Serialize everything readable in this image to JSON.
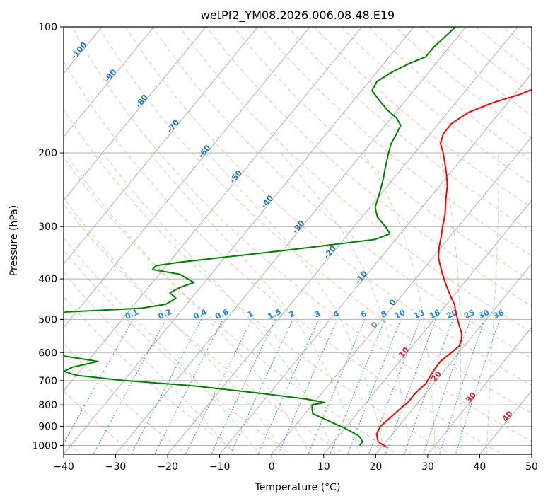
{
  "chart_data": {
    "type": "skew-t log-p",
    "title": "wetPf2_YM08.2026.006.08.48.E19",
    "xlabel": "Temperature (°C)",
    "ylabel": "Pressure (hPa)",
    "xlim": [
      -40,
      50
    ],
    "ylim": [
      1050,
      100
    ],
    "x_ticks": [
      -40,
      -30,
      -20,
      -10,
      0,
      10,
      20,
      30,
      40,
      50
    ],
    "y_ticks": [
      100,
      200,
      300,
      400,
      500,
      600,
      700,
      800,
      900,
      1000
    ],
    "log_scale_pressure": true,
    "grid": true,
    "colors": {
      "temperature": "#ff0000",
      "dewpoint": "#008000",
      "isotherm_grid": "#b0b0b0",
      "dry_adiabat": "#f4a582",
      "moist_adiabat": "#a6dba0",
      "mixing_ratio": "#1e88e5",
      "isotherm_label": "#1f78b4",
      "moist_label": "#d62728",
      "zero_label": "#888888"
    },
    "series": [
      {
        "name": "",
        "kind": "temperature",
        "points": [
          [
            21.0,
            1010
          ],
          [
            18.5,
            980
          ],
          [
            17.0,
            940
          ],
          [
            16.5,
            900
          ],
          [
            17.0,
            860
          ],
          [
            17.5,
            820
          ],
          [
            18.0,
            790
          ],
          [
            18.0,
            750
          ],
          [
            18.5,
            710
          ],
          [
            18.0,
            670
          ],
          [
            17.8,
            630
          ],
          [
            18.5,
            600
          ],
          [
            19.0,
            580
          ],
          [
            18.5,
            560
          ],
          [
            17.5,
            540
          ],
          [
            16.0,
            520
          ],
          [
            14.5,
            500
          ],
          [
            13.0,
            480
          ],
          [
            11.5,
            460
          ],
          [
            10.0,
            445
          ],
          [
            8.0,
            425
          ],
          [
            6.5,
            410
          ],
          [
            4.5,
            390
          ],
          [
            2.5,
            370
          ],
          [
            1.0,
            355
          ],
          [
            -0.5,
            335
          ],
          [
            -1.5,
            320
          ],
          [
            -3.0,
            300
          ],
          [
            -4.5,
            280
          ],
          [
            -6.5,
            260
          ],
          [
            -8.5,
            240
          ],
          [
            -10.5,
            225
          ],
          [
            -12.5,
            212
          ],
          [
            -14.5,
            200
          ],
          [
            -16.5,
            190
          ],
          [
            -17.5,
            180
          ],
          [
            -17.5,
            170
          ],
          [
            -16.0,
            160
          ],
          [
            -13.0,
            152
          ],
          [
            -9.0,
            145
          ],
          [
            -6.0,
            138
          ],
          [
            -3.5,
            130
          ],
          [
            -1.5,
            122
          ],
          [
            1.0,
            115
          ],
          [
            3.5,
            109
          ],
          [
            5.5,
            104
          ],
          [
            6.5,
            100
          ]
        ]
      },
      {
        "name": "",
        "kind": "dewpoint",
        "points": [
          [
            15.5,
            1000
          ],
          [
            15.5,
            980
          ],
          [
            14.5,
            960
          ],
          [
            13.5,
            945
          ],
          [
            12.0,
            930
          ],
          [
            10.0,
            910
          ],
          [
            7.0,
            885
          ],
          [
            4.0,
            860
          ],
          [
            1.5,
            840
          ],
          [
            0.5,
            815
          ],
          [
            0.0,
            800
          ],
          [
            2.0,
            790
          ],
          [
            -2.0,
            775
          ],
          [
            -12.0,
            750
          ],
          [
            -26.0,
            720
          ],
          [
            -40.0,
            700
          ],
          [
            -50.0,
            680
          ],
          [
            -53.0,
            665
          ],
          [
            -52.0,
            650
          ],
          [
            -50.0,
            640
          ],
          [
            -48.0,
            630
          ],
          [
            -60.0,
            600
          ],
          [
            -62.0,
            540
          ],
          [
            -63.0,
            530
          ],
          [
            -64.0,
            520
          ],
          [
            -65.0,
            500
          ],
          [
            -64.0,
            495
          ],
          [
            -62.0,
            480
          ],
          [
            -48.0,
            470
          ],
          [
            -44.0,
            460
          ],
          [
            -43.0,
            445
          ],
          [
            -45.0,
            432
          ],
          [
            -44.0,
            420
          ],
          [
            -42.0,
            408
          ],
          [
            -46.0,
            390
          ],
          [
            -52.0,
            380
          ],
          [
            -52.0,
            372
          ],
          [
            -48.0,
            365
          ],
          [
            -28.0,
            340
          ],
          [
            -14.0,
            322
          ],
          [
            -12.0,
            312
          ],
          [
            -14.0,
            300
          ],
          [
            -17.0,
            285
          ],
          [
            -19.0,
            270
          ],
          [
            -20.0,
            255
          ],
          [
            -21.0,
            242
          ],
          [
            -22.0,
            230
          ],
          [
            -23.0,
            220
          ],
          [
            -24.0,
            210
          ],
          [
            -25.0,
            200
          ],
          [
            -26.0,
            190
          ],
          [
            -26.5,
            180
          ],
          [
            -27.0,
            172
          ],
          [
            -29.0,
            165
          ],
          [
            -32.0,
            158
          ],
          [
            -35.0,
            150
          ],
          [
            -38.0,
            142
          ],
          [
            -38.5,
            135
          ],
          [
            -37.0,
            128
          ],
          [
            -35.0,
            122
          ],
          [
            -33.0,
            118
          ],
          [
            -33.0,
            112
          ],
          [
            -32.5,
            106
          ],
          [
            -32.0,
            100
          ]
        ]
      }
    ],
    "isotherm_labels": [
      "-100",
      "-90",
      "-80",
      "-70",
      "-60",
      "-50",
      "-40",
      "-30",
      "-20",
      "-10",
      "0"
    ],
    "isotherm_label_values": [
      -100,
      -90,
      -80,
      -70,
      -60,
      -50,
      -40,
      -30,
      -20,
      -10,
      0
    ],
    "mixing_ratio_labels": [
      "0.1",
      "0.2",
      "0.4",
      "0.6",
      "1",
      "1.5",
      "2",
      "3",
      "4",
      "6",
      "8",
      "10",
      "13",
      "16",
      "20",
      "25",
      "30",
      "36"
    ],
    "mixing_ratio_values": [
      0.1,
      0.2,
      0.4,
      0.6,
      1,
      1.5,
      2,
      3,
      4,
      6,
      8,
      10,
      13,
      16,
      20,
      25,
      30,
      36
    ],
    "moist_adiabat_labels": [
      "10",
      "20",
      "30",
      "40"
    ],
    "moist_adiabat_label_values": [
      10,
      20,
      30,
      40
    ],
    "zero_label": "0"
  }
}
